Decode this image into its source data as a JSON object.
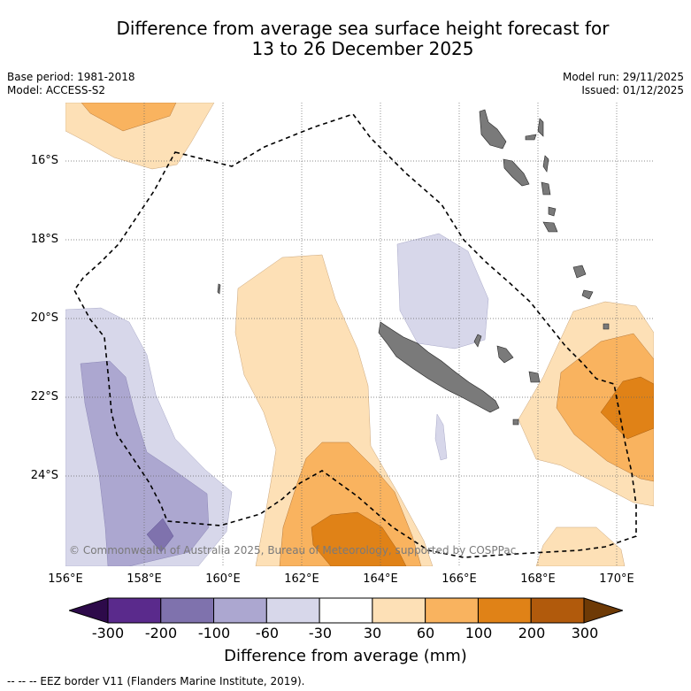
{
  "title": {
    "line1": "Difference from average sea surface height forecast for",
    "line2": "13 to 26 December 2025"
  },
  "meta_left": {
    "base_period": "Base period: 1981-2018",
    "model": "Model: ACCESS-S2"
  },
  "meta_right": {
    "model_run": "Model run: 29/11/2025",
    "issued": "Issued: 01/12/2025"
  },
  "latitude_labels": [
    "16°S",
    "18°S",
    "20°S",
    "22°S",
    "24°S"
  ],
  "longitude_labels": [
    "156°E",
    "158°E",
    "160°E",
    "162°E",
    "164°E",
    "166°E",
    "168°E",
    "170°E"
  ],
  "copyright": "© Commonwealth of Australia 2025, Bureau of Meteorology, supported by COSPPac",
  "colorbar": {
    "ticks": [
      "-300",
      "-200",
      "-100",
      "-60",
      "-30",
      "30",
      "60",
      "100",
      "200",
      "300"
    ],
    "colors": [
      "#2d0a4a",
      "#5a2a8c",
      "#7f72ad",
      "#aca7d0",
      "#d7d7ea",
      "#ffffff",
      "#fde0b6",
      "#f9b35f",
      "#e08217",
      "#b15a0c",
      "#6e3a06"
    ],
    "label": "Difference from average (mm)"
  },
  "legend_note": "--  --  -- EEZ border V11 (Flanders Marine Institute, 2019).",
  "land_color": "#7a7a7a"
}
